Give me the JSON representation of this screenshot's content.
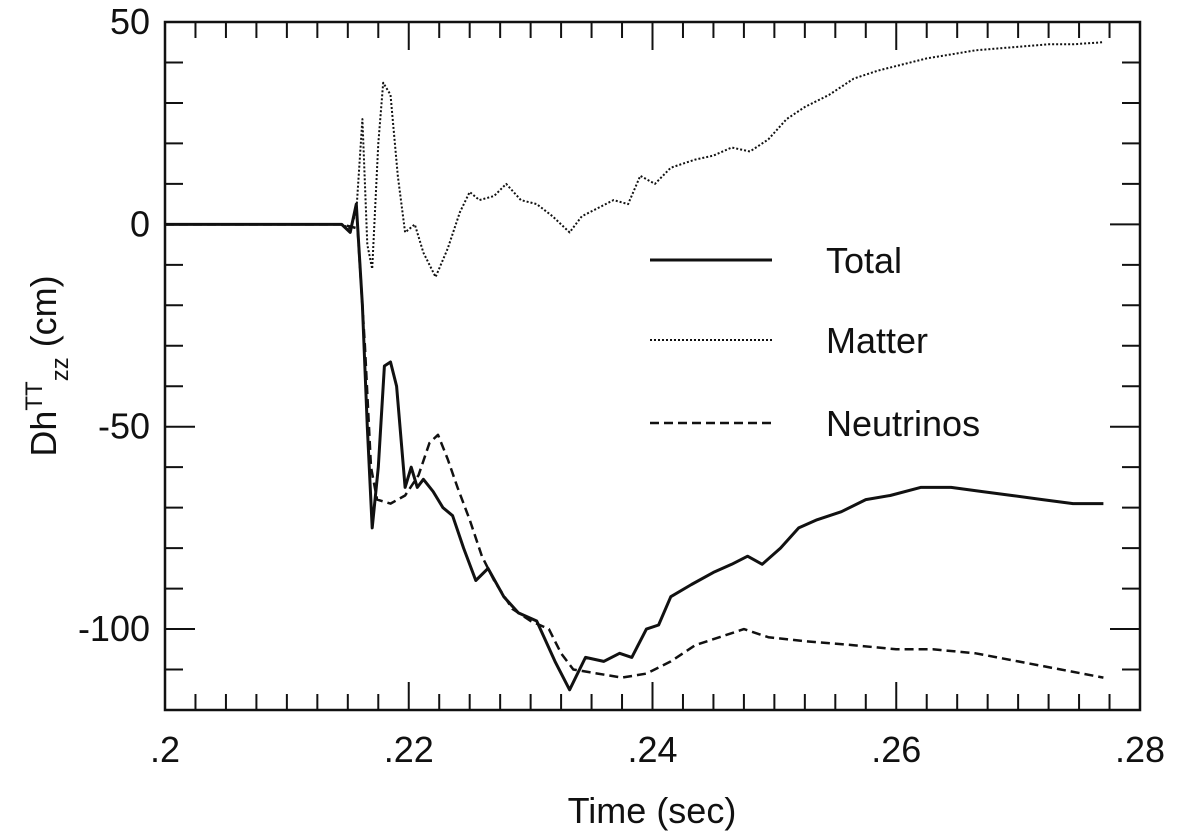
{
  "chart_data": {
    "type": "line",
    "xlabel": "Time (sec)",
    "ylabel": {
      "main": "Dh",
      "sup": "TT",
      "sub": "zz",
      "unit": " (cm)"
    },
    "xlim": [
      0.2,
      0.28
    ],
    "ylim": [
      -120,
      50
    ],
    "x_ticks": [
      {
        "value": 0.2,
        "label": ".2"
      },
      {
        "value": 0.22,
        "label": ".22"
      },
      {
        "value": 0.24,
        "label": ".24"
      },
      {
        "value": 0.26,
        "label": ".26"
      },
      {
        "value": 0.28,
        "label": ".28"
      }
    ],
    "y_ticks": [
      {
        "value": 50,
        "label": "50"
      },
      {
        "value": 0,
        "label": "0"
      },
      {
        "value": -50,
        "label": "-50"
      },
      {
        "value": -100,
        "label": "-100"
      }
    ],
    "x_minor_step": 0.0025,
    "y_minor_step": 10,
    "legend_position": "center-right",
    "series": [
      {
        "name": "Total",
        "style": "solid",
        "color": "#111111",
        "points": [
          [
            0.2,
            0
          ],
          [
            0.2145,
            0
          ],
          [
            0.2152,
            -2
          ],
          [
            0.2157,
            5
          ],
          [
            0.2162,
            -20
          ],
          [
            0.2166,
            -50
          ],
          [
            0.217,
            -75
          ],
          [
            0.2175,
            -60
          ],
          [
            0.218,
            -35
          ],
          [
            0.2185,
            -34
          ],
          [
            0.219,
            -40
          ],
          [
            0.2197,
            -65
          ],
          [
            0.2202,
            -60
          ],
          [
            0.2207,
            -65
          ],
          [
            0.2212,
            -63
          ],
          [
            0.222,
            -66
          ],
          [
            0.2228,
            -70
          ],
          [
            0.2236,
            -72
          ],
          [
            0.2245,
            -80
          ],
          [
            0.2255,
            -88
          ],
          [
            0.2265,
            -85
          ],
          [
            0.2278,
            -92
          ],
          [
            0.229,
            -96
          ],
          [
            0.2305,
            -98
          ],
          [
            0.232,
            -108
          ],
          [
            0.2332,
            -115
          ],
          [
            0.2345,
            -107
          ],
          [
            0.236,
            -108
          ],
          [
            0.2373,
            -106
          ],
          [
            0.2383,
            -107
          ],
          [
            0.2395,
            -100
          ],
          [
            0.2405,
            -99
          ],
          [
            0.2415,
            -92
          ],
          [
            0.2432,
            -89
          ],
          [
            0.245,
            -86
          ],
          [
            0.2465,
            -84
          ],
          [
            0.2478,
            -82
          ],
          [
            0.249,
            -84
          ],
          [
            0.2505,
            -80
          ],
          [
            0.252,
            -75
          ],
          [
            0.2535,
            -73
          ],
          [
            0.2555,
            -71
          ],
          [
            0.2575,
            -68
          ],
          [
            0.2595,
            -67
          ],
          [
            0.262,
            -65
          ],
          [
            0.2645,
            -65
          ],
          [
            0.267,
            -66
          ],
          [
            0.2695,
            -67
          ],
          [
            0.272,
            -68
          ],
          [
            0.2745,
            -69
          ],
          [
            0.277,
            -69
          ]
        ]
      },
      {
        "name": "Matter",
        "style": "dotted",
        "color": "#111111",
        "points": [
          [
            0.2,
            0
          ],
          [
            0.2145,
            0
          ],
          [
            0.2152,
            -1
          ],
          [
            0.2157,
            3
          ],
          [
            0.2162,
            26
          ],
          [
            0.2166,
            -5
          ],
          [
            0.217,
            -11
          ],
          [
            0.2175,
            20
          ],
          [
            0.2179,
            35
          ],
          [
            0.2185,
            32
          ],
          [
            0.2191,
            12
          ],
          [
            0.2197,
            -2
          ],
          [
            0.2205,
            0
          ],
          [
            0.2212,
            -7
          ],
          [
            0.2222,
            -13
          ],
          [
            0.2232,
            -6
          ],
          [
            0.2242,
            3
          ],
          [
            0.225,
            8
          ],
          [
            0.2258,
            6
          ],
          [
            0.227,
            7
          ],
          [
            0.228,
            10
          ],
          [
            0.2292,
            6
          ],
          [
            0.2305,
            5
          ],
          [
            0.2318,
            2
          ],
          [
            0.2332,
            -2
          ],
          [
            0.2342,
            2
          ],
          [
            0.2355,
            4
          ],
          [
            0.2368,
            6
          ],
          [
            0.238,
            5
          ],
          [
            0.239,
            12
          ],
          [
            0.2402,
            10
          ],
          [
            0.2415,
            14
          ],
          [
            0.2435,
            16
          ],
          [
            0.245,
            17
          ],
          [
            0.2465,
            19
          ],
          [
            0.248,
            18
          ],
          [
            0.2495,
            21
          ],
          [
            0.251,
            26
          ],
          [
            0.2525,
            29
          ],
          [
            0.2545,
            32
          ],
          [
            0.2565,
            36
          ],
          [
            0.2585,
            38
          ],
          [
            0.2605,
            39.5
          ],
          [
            0.2625,
            41
          ],
          [
            0.2645,
            42
          ],
          [
            0.2665,
            43
          ],
          [
            0.2685,
            43.5
          ],
          [
            0.2705,
            44
          ],
          [
            0.2725,
            44.5
          ],
          [
            0.2745,
            44.5
          ],
          [
            0.277,
            45
          ]
        ]
      },
      {
        "name": "Neutrinos",
        "style": "dashed",
        "color": "#111111",
        "points": [
          [
            0.2,
            0
          ],
          [
            0.2145,
            0
          ],
          [
            0.2158,
            -1
          ],
          [
            0.2164,
            -30
          ],
          [
            0.2169,
            -60
          ],
          [
            0.2174,
            -68
          ],
          [
            0.2185,
            -69
          ],
          [
            0.2197,
            -67
          ],
          [
            0.2208,
            -62
          ],
          [
            0.2217,
            -54
          ],
          [
            0.2224,
            -52
          ],
          [
            0.2232,
            -58
          ],
          [
            0.224,
            -65
          ],
          [
            0.225,
            -73
          ],
          [
            0.226,
            -82
          ],
          [
            0.227,
            -88
          ],
          [
            0.2285,
            -95
          ],
          [
            0.23,
            -98
          ],
          [
            0.2315,
            -100
          ],
          [
            0.2325,
            -106
          ],
          [
            0.2335,
            -110
          ],
          [
            0.2355,
            -111
          ],
          [
            0.2375,
            -112
          ],
          [
            0.2395,
            -111
          ],
          [
            0.2415,
            -108
          ],
          [
            0.2435,
            -104
          ],
          [
            0.2455,
            -102
          ],
          [
            0.2475,
            -100
          ],
          [
            0.2495,
            -102
          ],
          [
            0.2525,
            -103
          ],
          [
            0.2565,
            -104
          ],
          [
            0.26,
            -105
          ],
          [
            0.263,
            -105
          ],
          [
            0.2665,
            -106
          ],
          [
            0.27,
            -108
          ],
          [
            0.2735,
            -110
          ],
          [
            0.277,
            -112
          ]
        ]
      }
    ]
  }
}
